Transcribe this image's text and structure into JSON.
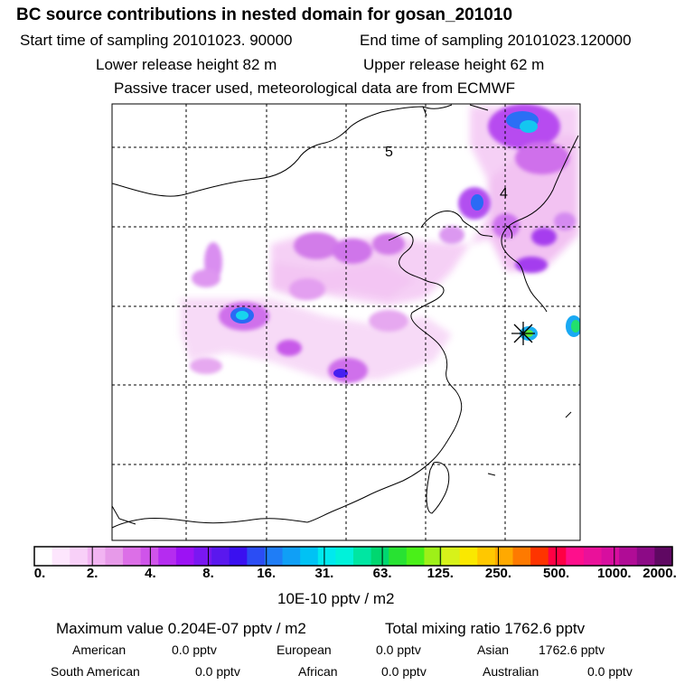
{
  "header": {
    "title": "BC  source contributions in nested domain for gosan_201010",
    "start_sampling": "Start time of sampling 20101023. 90000",
    "end_sampling": "End time of sampling 20101023.120000",
    "lower_release": "Lower release height   82 m",
    "upper_release": "Upper release height   62 m",
    "tracer_note": "Passive tracer used, meteorological data are from ECMWF"
  },
  "map": {
    "contour_labels": [
      "5",
      "4"
    ],
    "receptor_marker": "star-icon"
  },
  "colorbar": {
    "colors": [
      "#ffffff",
      "#fde6fd",
      "#f8d0f8",
      "#f2b4f2",
      "#e79ae9",
      "#dc6fe7",
      "#cf54ea",
      "#b52cf0",
      "#9c12f4",
      "#7a17f2",
      "#5a18ee",
      "#3a10f0",
      "#2b4df4",
      "#1f7df6",
      "#109ff6",
      "#00c2f4",
      "#00e9ee",
      "#00f2da",
      "#00e6a2",
      "#00d770",
      "#28e232",
      "#4af018",
      "#9ef018",
      "#d7f21a",
      "#fae800",
      "#ffc800",
      "#ffa900",
      "#fe7a00",
      "#fe3400",
      "#ff0044",
      "#fe0f8c",
      "#ea119a",
      "#d70e9f",
      "#b00c96",
      "#8c0a86",
      "#5f0862"
    ],
    "tick_labels": [
      "0.",
      "2.",
      "4.",
      "8.",
      "16.",
      "31.",
      "63.",
      "125.",
      "250.",
      "500.",
      "1000.",
      "2000."
    ],
    "unit": "10E-10 pptv / m2"
  },
  "stats": {
    "max_value": "Maximum value  0.204E-07 pptv / m2",
    "total_mixing": "Total mixing ratio     1762.6 pptv",
    "american_label": "American",
    "american_value": "0.0 pptv",
    "european_label": "European",
    "european_value": "0.0 pptv",
    "asian_label": "Asian",
    "asian_value": "1762.6 pptv",
    "south_american_label": "South American",
    "south_american_value": "0.0 pptv",
    "african_label": "African",
    "african_value": "0.0 pptv",
    "australian_label": "Australian",
    "australian_value": "0.0 pptv"
  }
}
